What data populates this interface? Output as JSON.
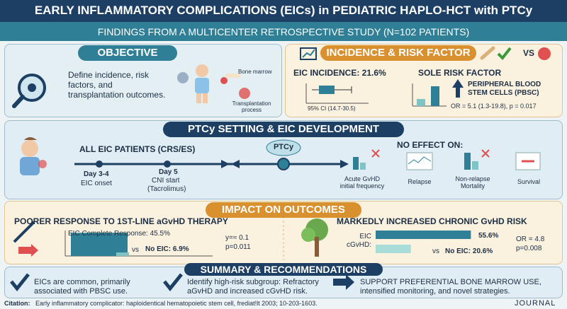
{
  "title": "EARLY INFLAMMATORY COMPLICATIONS (EICs) in PEDIATRIC HAPLO-HCT with PTCy",
  "subtitle": "FINDINGS FROM A MULTICENTER RETROSPECTIVE STUDY (N=102 PATIENTS)",
  "objective": {
    "heading": "OBJECTIVE",
    "text": "Define incidence, risk factors, and transplantation outcomes.",
    "bone_marrow": "Bone marrow",
    "process": "Transplantation process"
  },
  "incidence": {
    "heading": "INCIDENCE & RISK FACTOR",
    "vs": "VS",
    "eic_incidence": "EIC INCIDENCE: 21.6%",
    "ci": "95% CI (14.7-30.5)",
    "risk_heading": "SOLE RISK FACTOR",
    "risk_factor": "PERIPHERAL BLOOD STEM CELLS (PBSC)",
    "or": "OR = 5.1 (1.3-19.8), p = 0.017"
  },
  "ptcy": {
    "heading": "PTCy SETTING & EIC DEVELOPMENT",
    "all_patients": "ALL EIC PATIENTS (CRS/ES)",
    "day34": "Day 3-4",
    "onset": "EIC onset",
    "day5": "Day 5",
    "cni": "CNI start",
    "tacrolimus": "(Tacrolimus)",
    "ptcy_label": "PTCy",
    "no_effect": "NO EFFECT ON:",
    "items": [
      "Acute GvHD initial frequency",
      "Relapse",
      "Non-relapse Mortality",
      "Survival"
    ]
  },
  "impact": {
    "heading": "IMPACT ON OUTCOMES",
    "left": {
      "title": "POORER RESPONSE TO 1ST-LINE aGvHD THERAPY",
      "eic": "EIC Complete Response: 45.5%",
      "vs": "vs",
      "no_eic": "No EIC: 6.9%",
      "stat1": "y=≈ 0.1",
      "stat2": "p=0.011",
      "values": [
        45.5,
        6.9
      ]
    },
    "right": {
      "title": "MARKEDLY INCREASED CHRONIC GvHD RISK",
      "eic": "EIC cGvHD:",
      "eic_value": "55.6%",
      "vs": "vs",
      "no_eic": "No EIC: 20.6%",
      "or": "OR = 4.8",
      "p": "p=0.008",
      "values": [
        55.6,
        20.6
      ]
    }
  },
  "summary": {
    "heading": "SUMMARY & RECOMMENDATIONS",
    "items": [
      "EICs are common, primarily associated with PBSC use.",
      "Identify high-risk subgroup: Refractory aGvHD and increased cGvHD risk.",
      "SUPPORT PREFERENTIAL BONE MARROW USE, intensified monitoring, and novel strategies."
    ]
  },
  "footer": {
    "citation_label": "Citation:",
    "citation": "Early inflammatory complicator: haploidentical hematopoietic stem cell, frediat!lt 2003; 10-203-1603.",
    "journal": "JOURNAL"
  }
}
